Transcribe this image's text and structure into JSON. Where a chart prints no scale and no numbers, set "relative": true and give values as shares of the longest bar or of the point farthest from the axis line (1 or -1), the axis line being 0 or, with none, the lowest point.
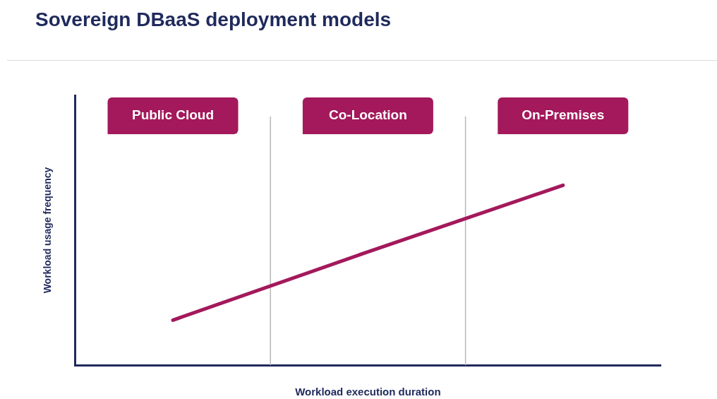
{
  "chart_data": {
    "type": "line",
    "title": "Sovereign DBaaS deployment models",
    "xlabel": "Workload execution duration",
    "ylabel": "Workload usage frequency",
    "relative": true,
    "categories": [
      "Public Cloud",
      "Co-Location",
      "On-Premises"
    ],
    "tick_labels": "x",
    "grid": "x",
    "legend": false,
    "marker": "none",
    "line_style": "solid",
    "series": [
      {
        "color": "#a3195b",
        "values": [
          0.25,
          0.63,
          1
        ]
      }
    ]
  }
}
